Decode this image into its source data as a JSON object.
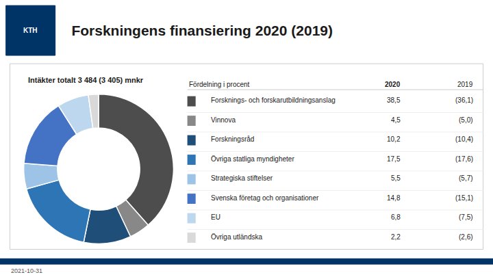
{
  "chart_data": {
    "type": "pie",
    "title": "Forskningens finansiering 2020 (2019)",
    "subtitle": "Intäkter totalt 3 484 (3 405) mnkr",
    "logo_text": "KTH",
    "color": "#003366",
    "table_header": "Fördelning i procent",
    "column_labels": [
      "2020",
      "2019"
    ],
    "categories": [
      "Forsknings- och forskarutbildningsanslag",
      "Vinnova",
      "Forskningsråd",
      "Övriga statliga myndigheter",
      "Strategiska stiftelser",
      "Svenska företag och organisationer",
      "EU",
      "Övriga utländska"
    ],
    "values": [
      38.5,
      4.5,
      10.2,
      17.5,
      5.5,
      14.8,
      6.8,
      2.2
    ],
    "value_labels": [
      "38,5",
      "4,5",
      "10,2",
      "17,5",
      "5,5",
      "14,8",
      "6,8",
      "2,2"
    ],
    "previous_values": [
      36.1,
      5.0,
      10.4,
      17.6,
      5.7,
      15.1,
      7.5,
      2.6
    ],
    "previous_value_labels": [
      "(36,1)",
      "(5,0)",
      "(10,4)",
      "(17,6)",
      "(5,7)",
      "(15,1)",
      "(7,5)",
      "(2,6)"
    ],
    "colors": [
      "#4d4d4d",
      "#888888",
      "#1f4e79",
      "#2e75b6",
      "#9dc3e6",
      "#4472c4",
      "#bdd7ee",
      "#d9d9d9"
    ],
    "date": "2021-10-31"
  }
}
